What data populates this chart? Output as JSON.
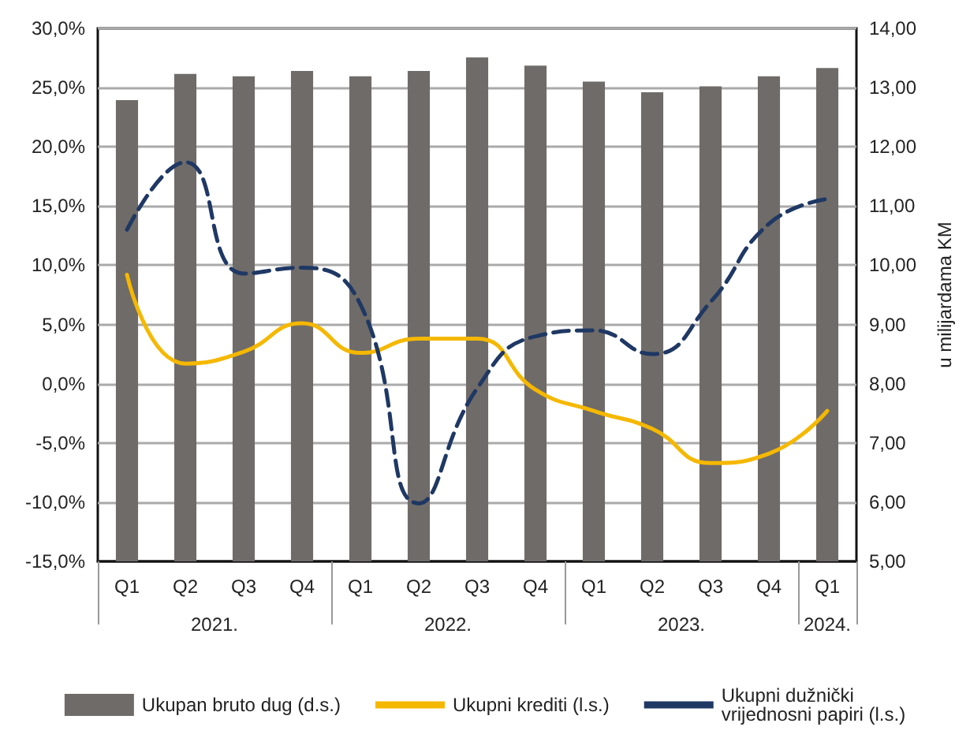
{
  "chart_data": {
    "type": "line",
    "categories": [
      "Q1",
      "Q2",
      "Q3",
      "Q4",
      "Q1",
      "Q2",
      "Q3",
      "Q4",
      "Q1",
      "Q2",
      "Q3",
      "Q4",
      "Q1"
    ],
    "annotations": [
      "2021.",
      "2022.",
      "2023.",
      "2024."
    ],
    "y2label": "u milijardama KM",
    "series": [
      {
        "name": "Ukupan bruto dug (d.s.)",
        "type": "bar",
        "axis": "y2",
        "color": "#6f6b69",
        "values": [
          12.79,
          13.23,
          13.19,
          13.28,
          13.19,
          13.28,
          13.51,
          13.37,
          13.1,
          12.92,
          13.02,
          13.19,
          13.33
        ]
      },
      {
        "name": "Ukupni krediti (l.s.)",
        "color": "#f5b800",
        "line_style": "solid",
        "values": [
          9.2,
          1.7,
          2.7,
          5.1,
          2.6,
          3.8,
          3.8,
          -0.5,
          -2.3,
          -3.8,
          -6.7,
          -5.9,
          -2.3
        ]
      },
      {
        "name": "Ukupni dužnički vrijednosni papiri (l.s.)",
        "color": "#1f3864",
        "line_style": "dashed",
        "values": [
          13.0,
          18.7,
          9.3,
          9.8,
          6.7,
          -10.1,
          -0.4,
          4.0,
          4.5,
          2.5,
          6.9,
          13.5,
          15.6
        ]
      }
    ],
    "ylim": [
      -15,
      30
    ],
    "yticks": [
      {
        "value": -15,
        "label": "-15,0%"
      },
      {
        "value": -10,
        "label": "-10,0%"
      },
      {
        "value": -5,
        "label": "-5,0%"
      },
      {
        "value": 0,
        "label": "0,0%"
      },
      {
        "value": 5,
        "label": "5,0%"
      },
      {
        "value": 10,
        "label": "10,0%"
      },
      {
        "value": 15,
        "label": "15,0%"
      },
      {
        "value": 20,
        "label": "20,0%"
      },
      {
        "value": 25,
        "label": "25,0%"
      },
      {
        "value": 30,
        "label": "30,0%"
      }
    ],
    "y2lim": [
      5,
      14
    ],
    "y2ticks": [
      {
        "value": 5,
        "label": "5,00"
      },
      {
        "value": 6,
        "label": "6,00"
      },
      {
        "value": 7,
        "label": "7,00"
      },
      {
        "value": 8,
        "label": "8,00"
      },
      {
        "value": 9,
        "label": "9,00"
      },
      {
        "value": 10,
        "label": "10,00"
      },
      {
        "value": 11,
        "label": "11,00"
      },
      {
        "value": 12,
        "label": "12,00"
      },
      {
        "value": 13,
        "label": "13,00"
      },
      {
        "value": 14,
        "label": "14,00"
      }
    ],
    "grid": "y",
    "legend": "bottom",
    "marker": "none"
  }
}
